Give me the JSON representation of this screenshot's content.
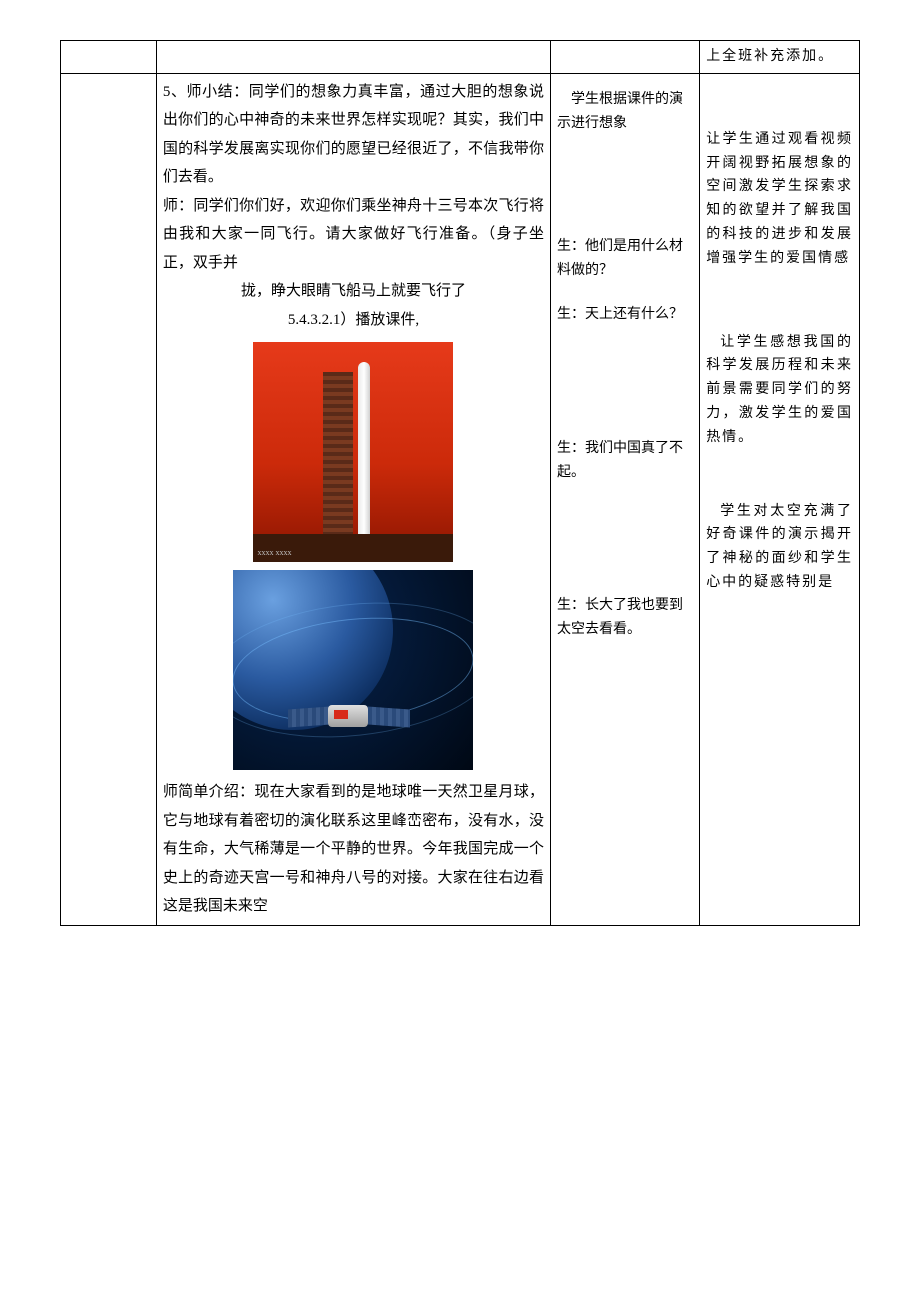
{
  "row1": {
    "design": "上全班补充添加。"
  },
  "row2": {
    "main": {
      "p1": "5、师小结：同学们的想象力真丰富，通过大胆的想象说出你们的心中神奇的未来世界怎样实现呢？其实，我们中国的科学发展离实现你们的愿望已经很近了，不信我带你们去看。",
      "p2": "师：同学们你们好，欢迎你们乘坐神舟十三号本次飞行将由我和大家一同飞行。请大家做好飞行准备。（身子坐正，双手并",
      "p3": "拢，睁大眼睛飞船马上就要飞行了",
      "p4": "5.4.3.2.1）播放课件,",
      "p5": "师简单介绍：现在大家看到的是地球唯一天然卫星月球，它与地球有着密切的演化联系这里峰峦密布，没有水，没有生命，大气稀薄是一个平静的世界。今年我国完成一个史上的奇迹天宫一号和神舟八号的对接。大家在往右边看这是我国未来空"
    },
    "student": {
      "s1": "学生根据课件的演示进行想象",
      "s2": "生：他们是用什么材料做的？",
      "s3": "生：天上还有什么？",
      "s4": "生：我们中国真了不起。",
      "s5": "生：长大了我也要到太空去看看。"
    },
    "design": {
      "d1": "让学生通过观看视频开阔视野拓展想象的空间激发学生探索求知的欲望并了解我国的科技的进步和发展增强学生的爱国情感",
      "d2": "让学生感想我国的科学发展历程和未来前景需要同学们的努力，激发学生的爱国热情。",
      "d3": "学生对太空充满了好奇课件的演示揭开了神秘的面纱和学生心中的疑惑特别是"
    }
  },
  "images": {
    "rocket": {
      "alt": "rocket-launch",
      "caption_placeholder": "xxxx xxxx"
    },
    "space": {
      "alt": "space-station-orbit"
    }
  },
  "colors": {
    "border": "#000000",
    "text": "#000000",
    "background": "#ffffff"
  }
}
